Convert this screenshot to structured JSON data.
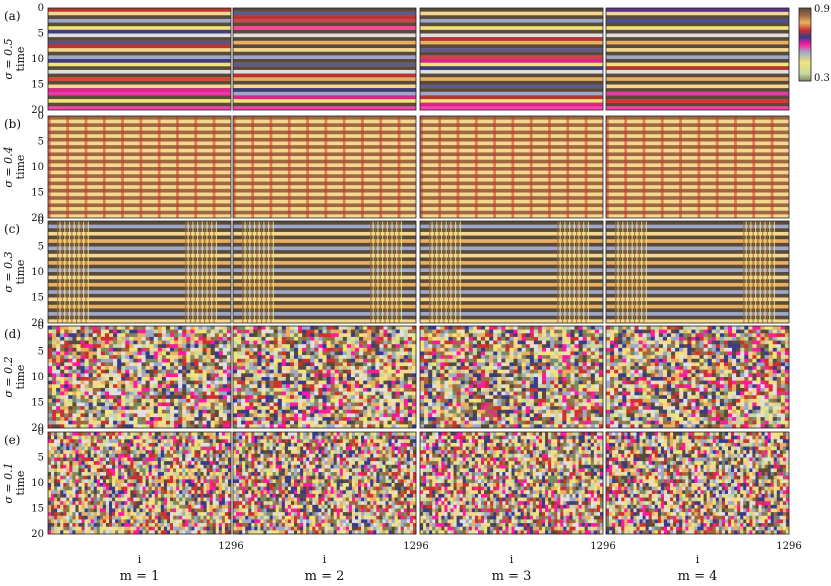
{
  "chart_data": {
    "type": "heatmap",
    "description_free": true,
    "colorbar": {
      "min": 0.3,
      "max": 0.9,
      "tick_labels": [
        "0.9",
        "0.3"
      ],
      "colors": [
        "#7a8a63",
        "#f0e47a",
        "#9fa8c8",
        "#e0e0e0",
        "#ff1aa0",
        "#3a3a8a",
        "#d03030",
        "#e8b060",
        "#a06840",
        "#5a4a3a"
      ]
    },
    "ylabel": "time",
    "xlabel": "i",
    "y_ticks": [
      "0",
      "5",
      "10",
      "15",
      "20"
    ],
    "x_end_tick": "1296",
    "rows": [
      {
        "panel": "(a)",
        "sigma_text": "σ = 0.5",
        "pattern": "stripes_mixed"
      },
      {
        "panel": "(b)",
        "sigma_text": "σ = 0.4",
        "pattern": "chimera_vertical"
      },
      {
        "panel": "(c)",
        "sigma_text": "σ = 0.3",
        "pattern": "chimera_blocks"
      },
      {
        "panel": "(d)",
        "sigma_text": "σ = 0.2",
        "pattern": "noisy_blocks"
      },
      {
        "panel": "(e)",
        "sigma_text": "σ = 0.1",
        "pattern": "noisy"
      }
    ],
    "columns": [
      {
        "label": "m = 1"
      },
      {
        "label": "m = 2"
      },
      {
        "label": "m = 3"
      },
      {
        "label": "m = 4"
      }
    ]
  }
}
